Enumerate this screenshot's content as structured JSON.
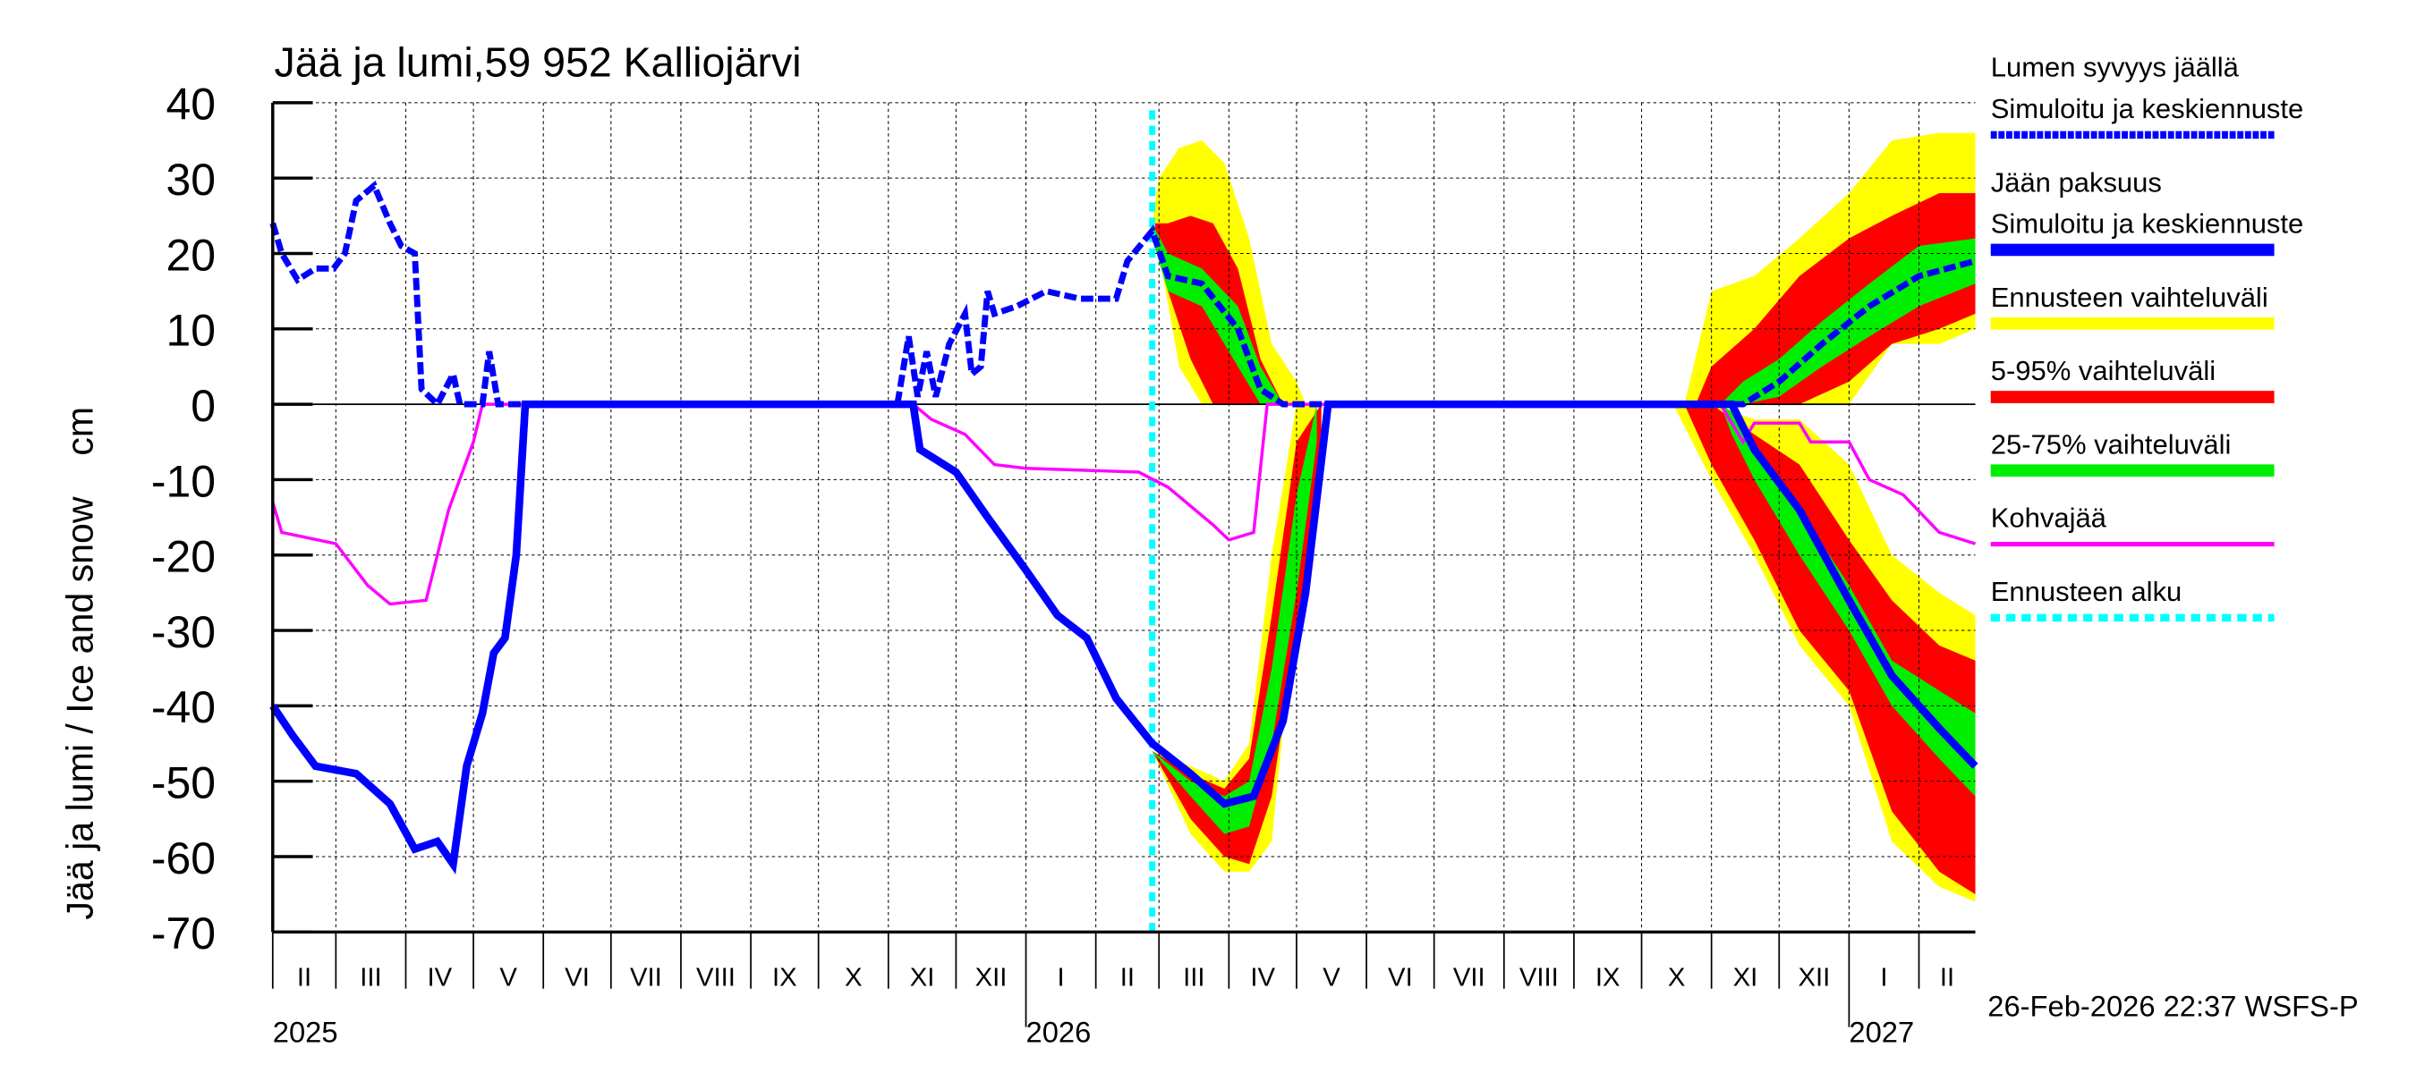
{
  "chart_data": {
    "type": "area",
    "title": "Jää ja lumi,59 952 Kalliojärvi",
    "ylabel": "Jää ja lumi / Ice and snow    cm",
    "xlabel": "",
    "ylim": [
      -70,
      40
    ],
    "yticks": [
      40,
      30,
      20,
      10,
      0,
      -10,
      -20,
      -30,
      -40,
      -50,
      -60,
      -70
    ],
    "xlim": [
      "2025-02-01",
      "2027-02-26"
    ],
    "grid": true,
    "legend_position": "right",
    "month_labels": [
      "II",
      "III",
      "IV",
      "V",
      "VI",
      "VII",
      "VIII",
      "IX",
      "X",
      "XI",
      "XII",
      "I",
      "II",
      "III",
      "IV",
      "V",
      "VI",
      "VII",
      "VIII",
      "IX",
      "X",
      "XI",
      "XII",
      "I",
      "II"
    ],
    "year_labels": [
      {
        "label": "2025",
        "date": "2025-02-01"
      },
      {
        "label": "2026",
        "date": "2026-01-01"
      },
      {
        "label": "2027",
        "date": "2027-01-01"
      }
    ],
    "forecast_start": "2026-02-26",
    "colors": {
      "snow": "#0000ff",
      "ice": "#0000ff",
      "minmax": "#ffff00",
      "p5_95": "#ff0000",
      "p25_75": "#00ee00",
      "kohva": "#ff00ff",
      "forecast": "#00ffff"
    },
    "legend": [
      {
        "label": "Lumen syvyys jäällä",
        "label2": "Simuloitu ja keskiennuste",
        "style": "snow"
      },
      {
        "label": "Jään paksuus",
        "label2": "Simuloitu ja keskiennuste",
        "style": "ice"
      },
      {
        "label": "Ennusteen vaihteluväli",
        "style": "minmax"
      },
      {
        "label": "5-95% vaihteluväli",
        "style": "p5_95"
      },
      {
        "label": "25-75% vaihteluväli",
        "style": "p25_75"
      },
      {
        "label": "Kohvajää",
        "style": "kohva"
      },
      {
        "label": "Ennusteen alku",
        "style": "forecast"
      }
    ],
    "series": {
      "snow": [
        [
          "2025-02-01",
          24
        ],
        [
          "2025-02-05",
          20
        ],
        [
          "2025-02-12",
          16.5
        ],
        [
          "2025-02-20",
          18
        ],
        [
          "2025-02-28",
          18
        ],
        [
          "2025-03-05",
          20
        ],
        [
          "2025-03-10",
          27
        ],
        [
          "2025-03-18",
          29
        ],
        [
          "2025-03-25",
          24
        ],
        [
          "2025-03-30",
          21
        ],
        [
          "2025-04-05",
          20
        ],
        [
          "2025-04-08",
          2
        ],
        [
          "2025-04-15",
          0
        ],
        [
          "2025-04-22",
          4
        ],
        [
          "2025-04-25",
          0
        ],
        [
          "2025-05-05",
          0
        ],
        [
          "2025-05-08",
          7
        ],
        [
          "2025-05-12",
          0
        ],
        [
          "2025-11-05",
          0
        ],
        [
          "2025-11-10",
          9
        ],
        [
          "2025-11-14",
          1
        ],
        [
          "2025-11-18",
          7
        ],
        [
          "2025-11-22",
          1
        ],
        [
          "2025-11-28",
          8
        ],
        [
          "2025-12-05",
          12
        ],
        [
          "2025-12-08",
          4
        ],
        [
          "2025-12-12",
          5
        ],
        [
          "2025-12-15",
          15
        ],
        [
          "2025-12-18",
          12
        ],
        [
          "2025-12-28",
          13
        ],
        [
          "2026-01-10",
          15
        ],
        [
          "2026-01-25",
          14
        ],
        [
          "2026-02-10",
          14
        ],
        [
          "2026-02-15",
          19
        ],
        [
          "2026-02-26",
          23
        ],
        [
          "2026-03-05",
          17
        ],
        [
          "2026-03-20",
          16
        ],
        [
          "2026-04-05",
          10
        ],
        [
          "2026-04-15",
          2
        ],
        [
          "2026-04-25",
          0
        ],
        [
          "2026-11-15",
          0
        ],
        [
          "2026-12-01",
          3
        ],
        [
          "2026-12-20",
          8
        ],
        [
          "2027-01-10",
          13
        ],
        [
          "2027-02-01",
          17
        ],
        [
          "2027-02-26",
          19
        ]
      ],
      "ice": [
        [
          "2025-02-01",
          -40
        ],
        [
          "2025-02-10",
          -44
        ],
        [
          "2025-02-20",
          -48
        ],
        [
          "2025-03-10",
          -49
        ],
        [
          "2025-03-25",
          -53
        ],
        [
          "2025-04-05",
          -59
        ],
        [
          "2025-04-15",
          -58
        ],
        [
          "2025-04-22",
          -61
        ],
        [
          "2025-04-28",
          -48
        ],
        [
          "2025-05-05",
          -41
        ],
        [
          "2025-05-10",
          -33
        ],
        [
          "2025-05-15",
          -31
        ],
        [
          "2025-05-20",
          -20
        ],
        [
          "2025-05-24",
          0
        ],
        [
          "2025-11-12",
          0
        ],
        [
          "2025-11-15",
          -6
        ],
        [
          "2025-12-01",
          -9
        ],
        [
          "2025-12-15",
          -15
        ],
        [
          "2026-01-01",
          -22
        ],
        [
          "2026-01-15",
          -28
        ],
        [
          "2026-01-28",
          -31
        ],
        [
          "2026-02-10",
          -39
        ],
        [
          "2026-02-26",
          -45
        ],
        [
          "2026-03-15",
          -49
        ],
        [
          "2026-03-30",
          -53
        ],
        [
          "2026-04-12",
          -52
        ],
        [
          "2026-04-25",
          -42
        ],
        [
          "2026-05-05",
          -25
        ],
        [
          "2026-05-15",
          0
        ],
        [
          "2026-11-10",
          0
        ],
        [
          "2026-11-20",
          -6
        ],
        [
          "2026-12-10",
          -14
        ],
        [
          "2027-01-01",
          -26
        ],
        [
          "2027-01-20",
          -36
        ],
        [
          "2027-02-10",
          -43
        ],
        [
          "2027-02-26",
          -48
        ]
      ],
      "kohva": [
        [
          "2025-02-01",
          -13
        ],
        [
          "2025-02-05",
          -17
        ],
        [
          "2025-03-01",
          -18.5
        ],
        [
          "2025-03-15",
          -24
        ],
        [
          "2025-03-25",
          -26.5
        ],
        [
          "2025-04-10",
          -26
        ],
        [
          "2025-04-20",
          -14
        ],
        [
          "2025-05-01",
          -5
        ],
        [
          "2025-05-05",
          0
        ],
        [
          "2025-11-12",
          0
        ],
        [
          "2025-11-20",
          -2
        ],
        [
          "2025-12-05",
          -4
        ],
        [
          "2025-12-18",
          -8
        ],
        [
          "2026-01-01",
          -8.5
        ],
        [
          "2026-02-20",
          -9
        ],
        [
          "2026-03-05",
          -11
        ],
        [
          "2026-03-25",
          -16
        ],
        [
          "2026-04-01",
          -18
        ],
        [
          "2026-04-12",
          -17
        ],
        [
          "2026-04-18",
          0
        ],
        [
          "2026-11-05",
          0
        ],
        [
          "2026-11-15",
          -5
        ],
        [
          "2026-11-20",
          -2.5
        ],
        [
          "2026-12-10",
          -2.5
        ],
        [
          "2026-12-15",
          -5
        ],
        [
          "2027-01-01",
          -5
        ],
        [
          "2027-01-10",
          -10
        ],
        [
          "2027-01-25",
          -12
        ],
        [
          "2027-02-10",
          -17
        ],
        [
          "2027-02-26",
          -18.5
        ]
      ]
    },
    "bands": [
      {
        "band": "minmax",
        "points": [
          [
            "2026-02-26",
            22,
            24
          ],
          [
            "2026-03-01",
            20,
            30
          ],
          [
            "2026-03-10",
            5,
            34
          ],
          [
            "2026-03-20",
            0,
            35
          ],
          [
            "2026-03-30",
            0,
            32
          ],
          [
            "2026-04-10",
            0,
            22
          ],
          [
            "2026-04-20",
            0,
            8
          ],
          [
            "2026-05-01",
            0,
            3
          ],
          [
            "2026-05-05",
            0,
            0
          ]
        ]
      },
      {
        "band": "p5_95",
        "points": [
          [
            "2026-02-26",
            22,
            24
          ],
          [
            "2026-03-05",
            15,
            24
          ],
          [
            "2026-03-15",
            6,
            25
          ],
          [
            "2026-03-25",
            0,
            24
          ],
          [
            "2026-04-05",
            0,
            18
          ],
          [
            "2026-04-15",
            0,
            6
          ],
          [
            "2026-04-25",
            0,
            0
          ]
        ]
      },
      {
        "band": "p25_75",
        "points": [
          [
            "2026-02-26",
            22,
            24
          ],
          [
            "2026-03-05",
            15,
            20
          ],
          [
            "2026-03-20",
            13,
            18
          ],
          [
            "2026-04-05",
            5,
            13
          ],
          [
            "2026-04-15",
            0,
            5
          ],
          [
            "2026-04-25",
            0,
            0
          ]
        ]
      },
      {
        "band": "minmax",
        "points": [
          [
            "2026-02-26",
            -46,
            -46
          ],
          [
            "2026-03-15",
            -57,
            -48
          ],
          [
            "2026-03-30",
            -62,
            -50
          ],
          [
            "2026-04-10",
            -62,
            -45
          ],
          [
            "2026-04-20",
            -58,
            -20
          ],
          [
            "2026-05-01",
            -25,
            0
          ],
          [
            "2026-05-10",
            -5,
            0
          ]
        ]
      },
      {
        "band": "p5_95",
        "points": [
          [
            "2026-02-26",
            -46,
            -46
          ],
          [
            "2026-03-15",
            -55,
            -49
          ],
          [
            "2026-03-30",
            -60,
            -51
          ],
          [
            "2026-04-10",
            -61,
            -47
          ],
          [
            "2026-04-20",
            -52,
            -28
          ],
          [
            "2026-05-01",
            -30,
            -5
          ],
          [
            "2026-05-12",
            -8,
            0
          ]
        ]
      },
      {
        "band": "p25_75",
        "points": [
          [
            "2026-02-26",
            -46,
            -46
          ],
          [
            "2026-03-15",
            -52,
            -50
          ],
          [
            "2026-03-30",
            -57,
            -52
          ],
          [
            "2026-04-10",
            -56,
            -50
          ],
          [
            "2026-04-20",
            -45,
            -35
          ],
          [
            "2026-05-01",
            -25,
            -12
          ],
          [
            "2026-05-10",
            -5,
            0
          ]
        ]
      },
      {
        "band": "minmax",
        "points": [
          [
            "2026-10-20",
            0,
            0
          ],
          [
            "2026-11-01",
            0,
            15
          ],
          [
            "2026-11-20",
            0,
            17
          ],
          [
            "2026-12-10",
            0,
            22
          ],
          [
            "2027-01-01",
            0,
            28
          ],
          [
            "2027-01-20",
            8,
            35
          ],
          [
            "2027-02-10",
            8,
            36
          ],
          [
            "2027-02-26",
            10,
            36
          ]
        ]
      },
      {
        "band": "p5_95",
        "points": [
          [
            "2026-10-25",
            0,
            0
          ],
          [
            "2026-11-01",
            0,
            5
          ],
          [
            "2026-11-20",
            0,
            10
          ],
          [
            "2026-12-10",
            0,
            17
          ],
          [
            "2027-01-01",
            3,
            22
          ],
          [
            "2027-01-20",
            8,
            25
          ],
          [
            "2027-02-10",
            10,
            28
          ],
          [
            "2027-02-26",
            12,
            28
          ]
        ]
      },
      {
        "band": "p25_75",
        "points": [
          [
            "2026-11-05",
            0,
            0
          ],
          [
            "2026-11-15",
            0,
            3
          ],
          [
            "2026-12-01",
            1,
            6
          ],
          [
            "2026-12-20",
            5,
            11
          ],
          [
            "2027-01-10",
            9,
            16
          ],
          [
            "2027-02-01",
            13,
            21
          ],
          [
            "2027-02-26",
            16,
            22
          ]
        ]
      },
      {
        "band": "minmax",
        "points": [
          [
            "2026-10-15",
            0,
            0
          ],
          [
            "2026-11-01",
            -10,
            0
          ],
          [
            "2026-11-20",
            -20,
            -2
          ],
          [
            "2026-12-10",
            -32,
            -2
          ],
          [
            "2027-01-01",
            -40,
            -8
          ],
          [
            "2027-01-20",
            -58,
            -20
          ],
          [
            "2027-02-10",
            -64,
            -25
          ],
          [
            "2027-02-26",
            -66,
            -28
          ]
        ]
      },
      {
        "band": "p5_95",
        "points": [
          [
            "2026-10-20",
            0,
            0
          ],
          [
            "2026-11-01",
            -8,
            0
          ],
          [
            "2026-11-20",
            -18,
            -4
          ],
          [
            "2026-12-10",
            -30,
            -8
          ],
          [
            "2027-01-01",
            -38,
            -18
          ],
          [
            "2027-01-20",
            -54,
            -26
          ],
          [
            "2027-02-10",
            -62,
            -32
          ],
          [
            "2027-02-26",
            -65,
            -34
          ]
        ]
      },
      {
        "band": "p25_75",
        "points": [
          [
            "2026-11-05",
            0,
            0
          ],
          [
            "2026-11-10",
            -4,
            -1
          ],
          [
            "2026-11-20",
            -10,
            -6
          ],
          [
            "2026-12-10",
            -20,
            -14
          ],
          [
            "2027-01-01",
            -30,
            -24
          ],
          [
            "2027-01-20",
            -40,
            -34
          ],
          [
            "2027-02-10",
            -47,
            -38
          ],
          [
            "2027-02-26",
            -52,
            -41
          ]
        ]
      }
    ]
  },
  "footer": "26-Feb-2026 22:37 WSFS-P"
}
